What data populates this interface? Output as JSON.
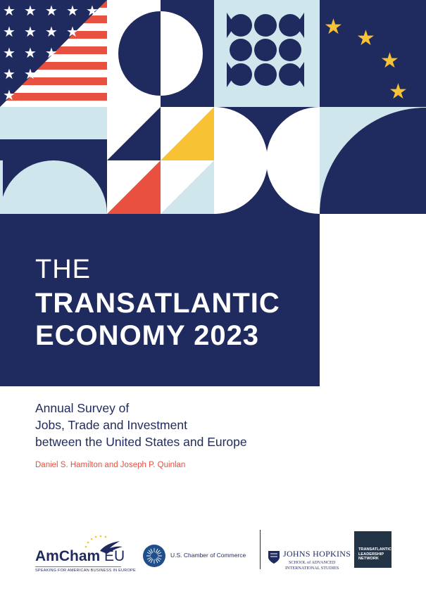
{
  "cover": {
    "title_prefix": "THE",
    "title_line1": "TRANSATLANTIC",
    "title_line2": "ECONOMY 2023",
    "subtitle_lines": [
      "Annual Survey of",
      "Jobs, Trade and Investment",
      "between the United States and Europe"
    ],
    "authors": "Daniel S. Hamilton and Joseph P. Quinlan"
  },
  "colors": {
    "navy": "#1f2a5e",
    "light_blue": "#cfe6ec",
    "red": "#e8503f",
    "yellow": "#f7c233",
    "white": "#ffffff"
  },
  "logos": {
    "amcham": {
      "name": "AmCham",
      "suffix": "EU",
      "tagline": "SPEAKING FOR AMERICAN BUSINESS IN EUROPE"
    },
    "us_chamber": {
      "name": "U.S. Chamber of Commerce"
    },
    "johns_hopkins": {
      "name": "JOHNS HOPKINS",
      "sub_line1": "SCHOOL of ADVANCED",
      "sub_line2": "INTERNATIONAL STUDIES"
    },
    "tln": {
      "line1": "TRANSATLANTIC",
      "line2": "LEADERSHIP",
      "line3": "NETWORK"
    }
  }
}
